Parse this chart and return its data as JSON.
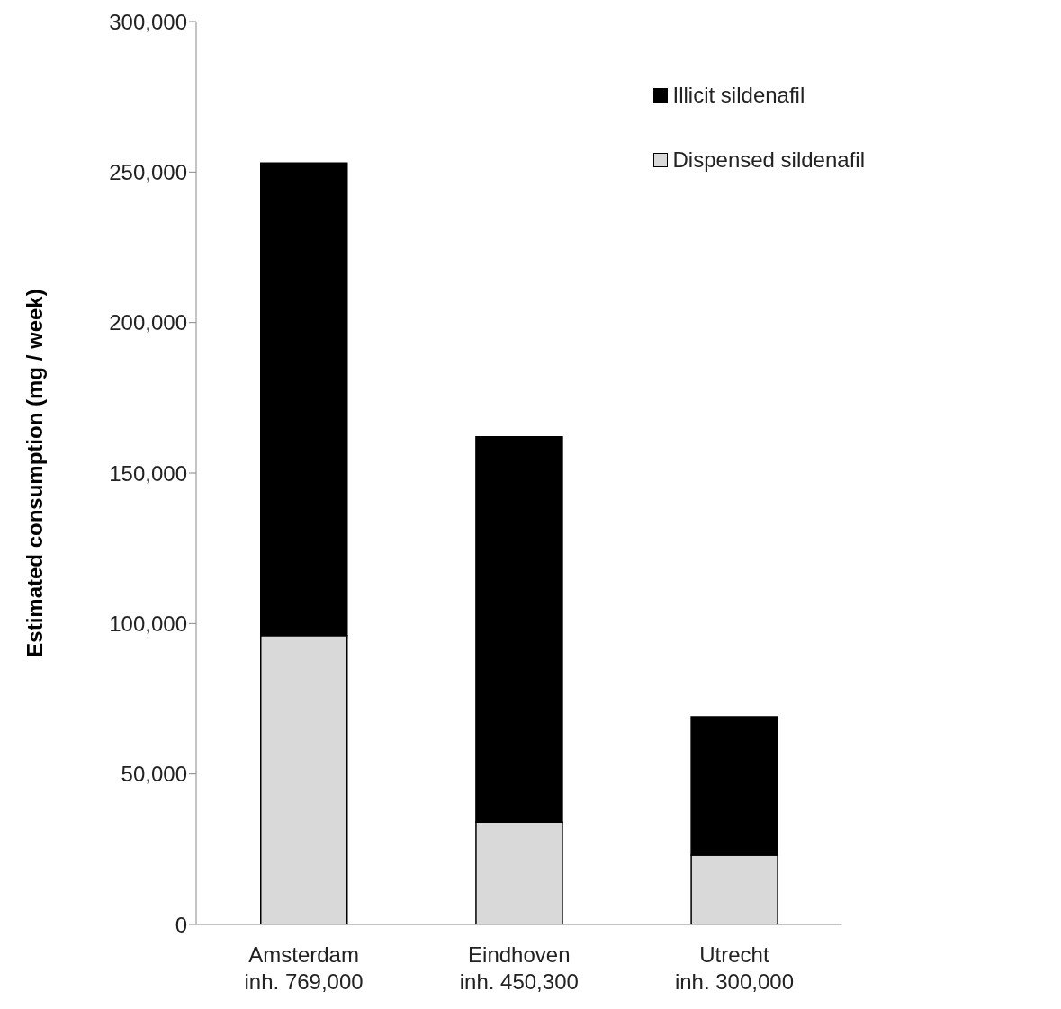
{
  "chart_data": {
    "type": "bar",
    "stacked": true,
    "ylabel": "Estimated consumption (mg / week)",
    "categories": [
      "Amsterdam\ninh. 769,000",
      "Eindhoven\ninh. 450,300",
      "Utrecht\ninh. 300,000"
    ],
    "series": [
      {
        "name": "Dispensed sildenafil",
        "color": "#d9d9d9",
        "values": [
          96000,
          34000,
          23000
        ]
      },
      {
        "name": "Illicit sildenafil",
        "color": "#000000",
        "values": [
          157000,
          128000,
          46000
        ]
      }
    ],
    "ylim": [
      0,
      300000
    ],
    "yticks": [
      {
        "value": 0,
        "label": "0"
      },
      {
        "value": 50000,
        "label": "50,000"
      },
      {
        "value": 100000,
        "label": "100,000"
      },
      {
        "value": 150000,
        "label": "150,000"
      },
      {
        "value": 200000,
        "label": "200,000"
      },
      {
        "value": 250000,
        "label": "250,000"
      },
      {
        "value": 300000,
        "label": "300,000"
      }
    ],
    "grid": false,
    "legend": "top right"
  }
}
